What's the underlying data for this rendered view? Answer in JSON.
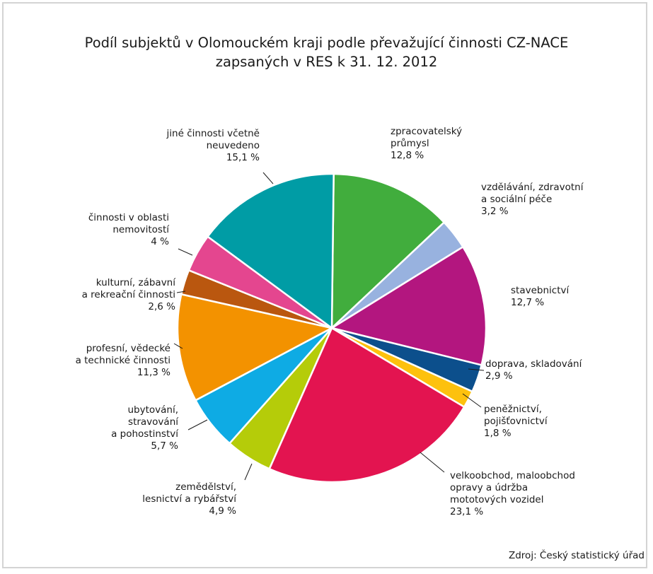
{
  "chart_data": {
    "type": "pie",
    "title_lines": [
      "Podíl subjektů v Olomouckém kraji podle převažující činnosti CZ-NACE",
      "zapsaných v RES k 31. 12. 2012"
    ],
    "source": "Zdroj: Český statistický úřad",
    "slices": [
      {
        "value": 12.8,
        "value_label": "12,8 %",
        "label_lines": [
          "zpracovatelský",
          "průmysl"
        ],
        "color": "#41ad3d"
      },
      {
        "value": 3.2,
        "value_label": "3,2 %",
        "label_lines": [
          "vzdělávání, zdravotní",
          "a sociální péče"
        ],
        "color": "#98b2df"
      },
      {
        "value": 12.7,
        "value_label": "12,7 %",
        "label_lines": [
          "stavebnictví"
        ],
        "color": "#b3167f"
      },
      {
        "value": 2.9,
        "value_label": "2,9 %",
        "label_lines": [
          "doprava, skladování"
        ],
        "color": "#0c4f8c"
      },
      {
        "value": 1.8,
        "value_label": "1,8 %",
        "label_lines": [
          "peněžnictví,",
          "pojišťovnictví"
        ],
        "color": "#fdc10e"
      },
      {
        "value": 23.1,
        "value_label": "23,1 %",
        "label_lines": [
          "velkoobchod, maloobchod",
          "opravy a údržba",
          "mototových vozidel"
        ],
        "color": "#e31450"
      },
      {
        "value": 4.9,
        "value_label": "4,9 %",
        "label_lines": [
          "zemědělství,",
          "lesnictví a rybářství"
        ],
        "color": "#b5cc09"
      },
      {
        "value": 5.7,
        "value_label": "5,7 %",
        "label_lines": [
          "ubytování,",
          "stravování",
          "a pohostinství"
        ],
        "color": "#0eabe4"
      },
      {
        "value": 11.3,
        "value_label": "11,3 %",
        "label_lines": [
          "profesní, vědecké",
          "a technické činnosti"
        ],
        "color": "#f39200"
      },
      {
        "value": 2.6,
        "value_label": "2,6 %",
        "label_lines": [
          "kulturní, zábavní",
          "a rekreační činnosti"
        ],
        "color": "#ba570f"
      },
      {
        "value": 4.0,
        "value_label": "4 %",
        "label_lines": [
          "činnosti v oblasti",
          "nemovitostí"
        ],
        "color": "#e4468f"
      },
      {
        "value": 15.1,
        "value_label": "15,1 %",
        "label_lines": [
          "jiné činnosti včetně",
          "neuvedeno"
        ],
        "color": "#009ca5"
      }
    ]
  }
}
